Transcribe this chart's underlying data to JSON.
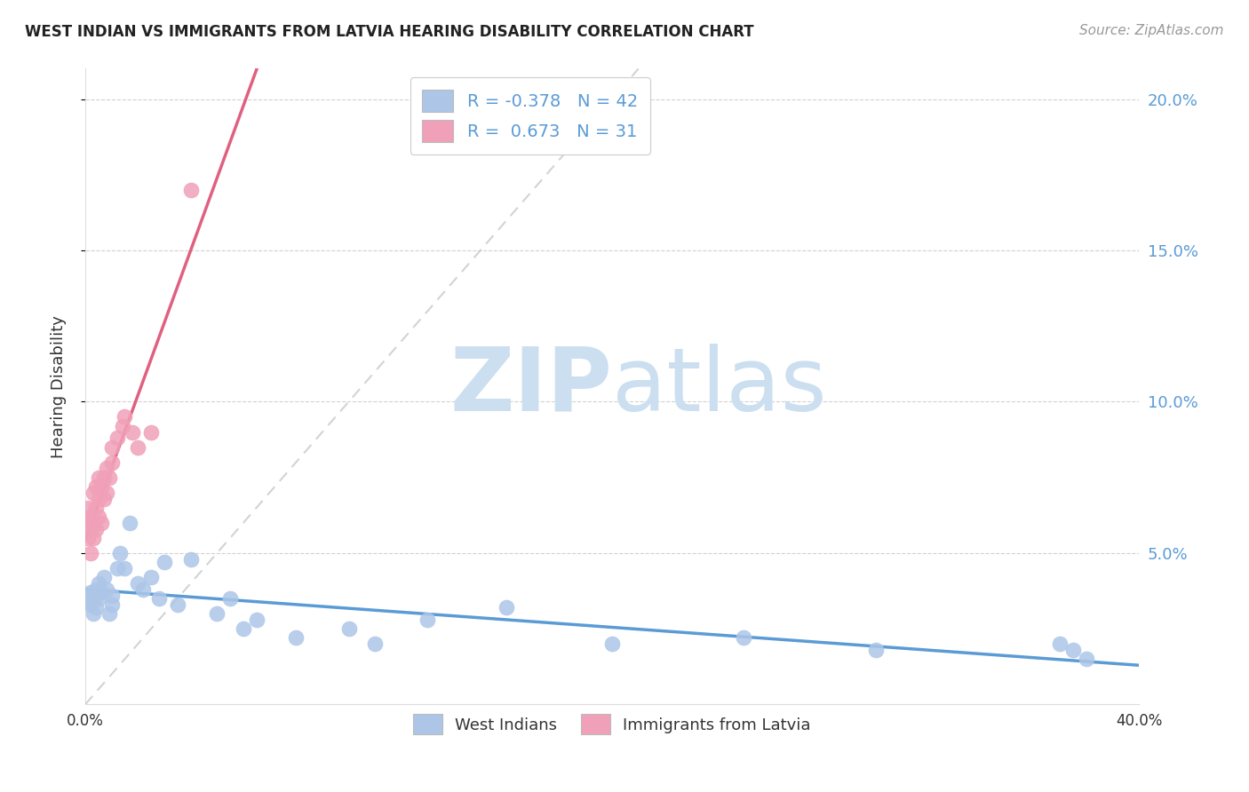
{
  "title": "WEST INDIAN VS IMMIGRANTS FROM LATVIA HEARING DISABILITY CORRELATION CHART",
  "source": "Source: ZipAtlas.com",
  "ylabel": "Hearing Disability",
  "legend_label1": "West Indians",
  "legend_label2": "Immigrants from Latvia",
  "R1": -0.378,
  "N1": 42,
  "R2": 0.673,
  "N2": 31,
  "color_blue": "#adc6e8",
  "color_pink": "#f0a0b8",
  "color_line_blue": "#5b9bd5",
  "color_line_pink": "#e06080",
  "color_diag": "#c8c8c8",
  "west_indian_x": [
    0.001,
    0.001,
    0.002,
    0.002,
    0.003,
    0.003,
    0.004,
    0.004,
    0.005,
    0.005,
    0.006,
    0.007,
    0.008,
    0.009,
    0.01,
    0.01,
    0.012,
    0.013,
    0.015,
    0.017,
    0.02,
    0.022,
    0.025,
    0.028,
    0.03,
    0.035,
    0.04,
    0.05,
    0.055,
    0.06,
    0.065,
    0.08,
    0.1,
    0.11,
    0.13,
    0.16,
    0.2,
    0.25,
    0.3,
    0.37,
    0.375,
    0.38
  ],
  "west_indian_y": [
    0.034,
    0.036,
    0.033,
    0.037,
    0.03,
    0.035,
    0.032,
    0.038,
    0.035,
    0.04,
    0.037,
    0.042,
    0.038,
    0.03,
    0.033,
    0.036,
    0.045,
    0.05,
    0.045,
    0.06,
    0.04,
    0.038,
    0.042,
    0.035,
    0.047,
    0.033,
    0.048,
    0.03,
    0.035,
    0.025,
    0.028,
    0.022,
    0.025,
    0.02,
    0.028,
    0.032,
    0.02,
    0.022,
    0.018,
    0.02,
    0.018,
    0.015
  ],
  "latvia_x": [
    0.001,
    0.001,
    0.001,
    0.002,
    0.002,
    0.002,
    0.003,
    0.003,
    0.003,
    0.004,
    0.004,
    0.004,
    0.005,
    0.005,
    0.005,
    0.006,
    0.006,
    0.007,
    0.007,
    0.008,
    0.008,
    0.009,
    0.01,
    0.01,
    0.012,
    0.014,
    0.015,
    0.018,
    0.02,
    0.025,
    0.04
  ],
  "latvia_y": [
    0.055,
    0.06,
    0.065,
    0.05,
    0.058,
    0.062,
    0.055,
    0.06,
    0.07,
    0.058,
    0.065,
    0.072,
    0.062,
    0.068,
    0.075,
    0.06,
    0.072,
    0.068,
    0.075,
    0.07,
    0.078,
    0.075,
    0.08,
    0.085,
    0.088,
    0.092,
    0.095,
    0.09,
    0.085,
    0.09,
    0.17
  ],
  "xmin": 0.0,
  "xmax": 0.4,
  "ymin": 0.0,
  "ymax": 0.21,
  "yticks": [
    0.05,
    0.1,
    0.15,
    0.2
  ],
  "ytick_labels": [
    "5.0%",
    "10.0%",
    "15.0%",
    "20.0%"
  ],
  "xticks": [
    0.0,
    0.1,
    0.2,
    0.3,
    0.4
  ],
  "xtick_labels": [
    "0.0%",
    "",
    "",
    "",
    "40.0%"
  ],
  "watermark_zip": "ZIP",
  "watermark_atlas": "atlas",
  "watermark_color": "#ccdff0"
}
